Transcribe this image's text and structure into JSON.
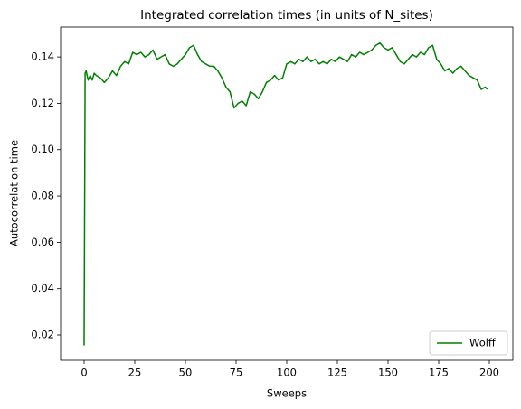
{
  "chart_data": {
    "type": "line",
    "title": "Integrated correlation times (in units of N_sites)",
    "xlabel": "Sweeps",
    "ylabel": "Autocorrelation time",
    "x": [
      0,
      0.5,
      1,
      2,
      3,
      4,
      5,
      6,
      8,
      10,
      12,
      14,
      16,
      18,
      20,
      22,
      24,
      26,
      28,
      30,
      32,
      34,
      36,
      38,
      40,
      42,
      44,
      46,
      48,
      50,
      52,
      54,
      56,
      58,
      60,
      62,
      64,
      66,
      68,
      70,
      72,
      74,
      76,
      78,
      80,
      82,
      84,
      86,
      88,
      90,
      92,
      94,
      96,
      98,
      100,
      102,
      104,
      106,
      108,
      110,
      112,
      114,
      116,
      118,
      120,
      122,
      124,
      126,
      128,
      130,
      132,
      134,
      136,
      138,
      140,
      142,
      144,
      146,
      148,
      150,
      152,
      154,
      156,
      158,
      160,
      162,
      164,
      166,
      168,
      170,
      172,
      174,
      176,
      178,
      180,
      182,
      184,
      186,
      188,
      190,
      192,
      194,
      196,
      198,
      199
    ],
    "series": [
      {
        "name": "Wolff",
        "color": "#008000",
        "values": [
          0.0155,
          0.133,
          0.134,
          0.13,
          0.132,
          0.13,
          0.133,
          0.132,
          0.131,
          0.129,
          0.131,
          0.134,
          0.132,
          0.136,
          0.138,
          0.137,
          0.142,
          0.141,
          0.142,
          0.14,
          0.141,
          0.143,
          0.139,
          0.14,
          0.141,
          0.137,
          0.136,
          0.137,
          0.139,
          0.141,
          0.144,
          0.145,
          0.141,
          0.138,
          0.137,
          0.136,
          0.136,
          0.134,
          0.131,
          0.127,
          0.125,
          0.118,
          0.12,
          0.121,
          0.119,
          0.125,
          0.124,
          0.122,
          0.125,
          0.129,
          0.13,
          0.132,
          0.13,
          0.131,
          0.137,
          0.138,
          0.137,
          0.139,
          0.138,
          0.14,
          0.138,
          0.139,
          0.137,
          0.138,
          0.137,
          0.139,
          0.138,
          0.14,
          0.139,
          0.138,
          0.141,
          0.14,
          0.142,
          0.141,
          0.142,
          0.143,
          0.145,
          0.146,
          0.144,
          0.143,
          0.144,
          0.141,
          0.138,
          0.137,
          0.139,
          0.141,
          0.14,
          0.142,
          0.141,
          0.144,
          0.145,
          0.139,
          0.137,
          0.134,
          0.135,
          0.133,
          0.135,
          0.136,
          0.134,
          0.132,
          0.131,
          0.13,
          0.126,
          0.127,
          0.126
        ]
      }
    ],
    "xlim": [
      -11.6,
      211.6
    ],
    "xticks": [
      0,
      25,
      50,
      75,
      100,
      125,
      150,
      175,
      200
    ],
    "ylim": [
      0.0091,
      0.1529
    ],
    "yticks": [
      0.02,
      0.04,
      0.06,
      0.08,
      {
        "value": 0.1,
        "label": "0.10"
      },
      0.12,
      0.14
    ],
    "legend": "lower right"
  }
}
